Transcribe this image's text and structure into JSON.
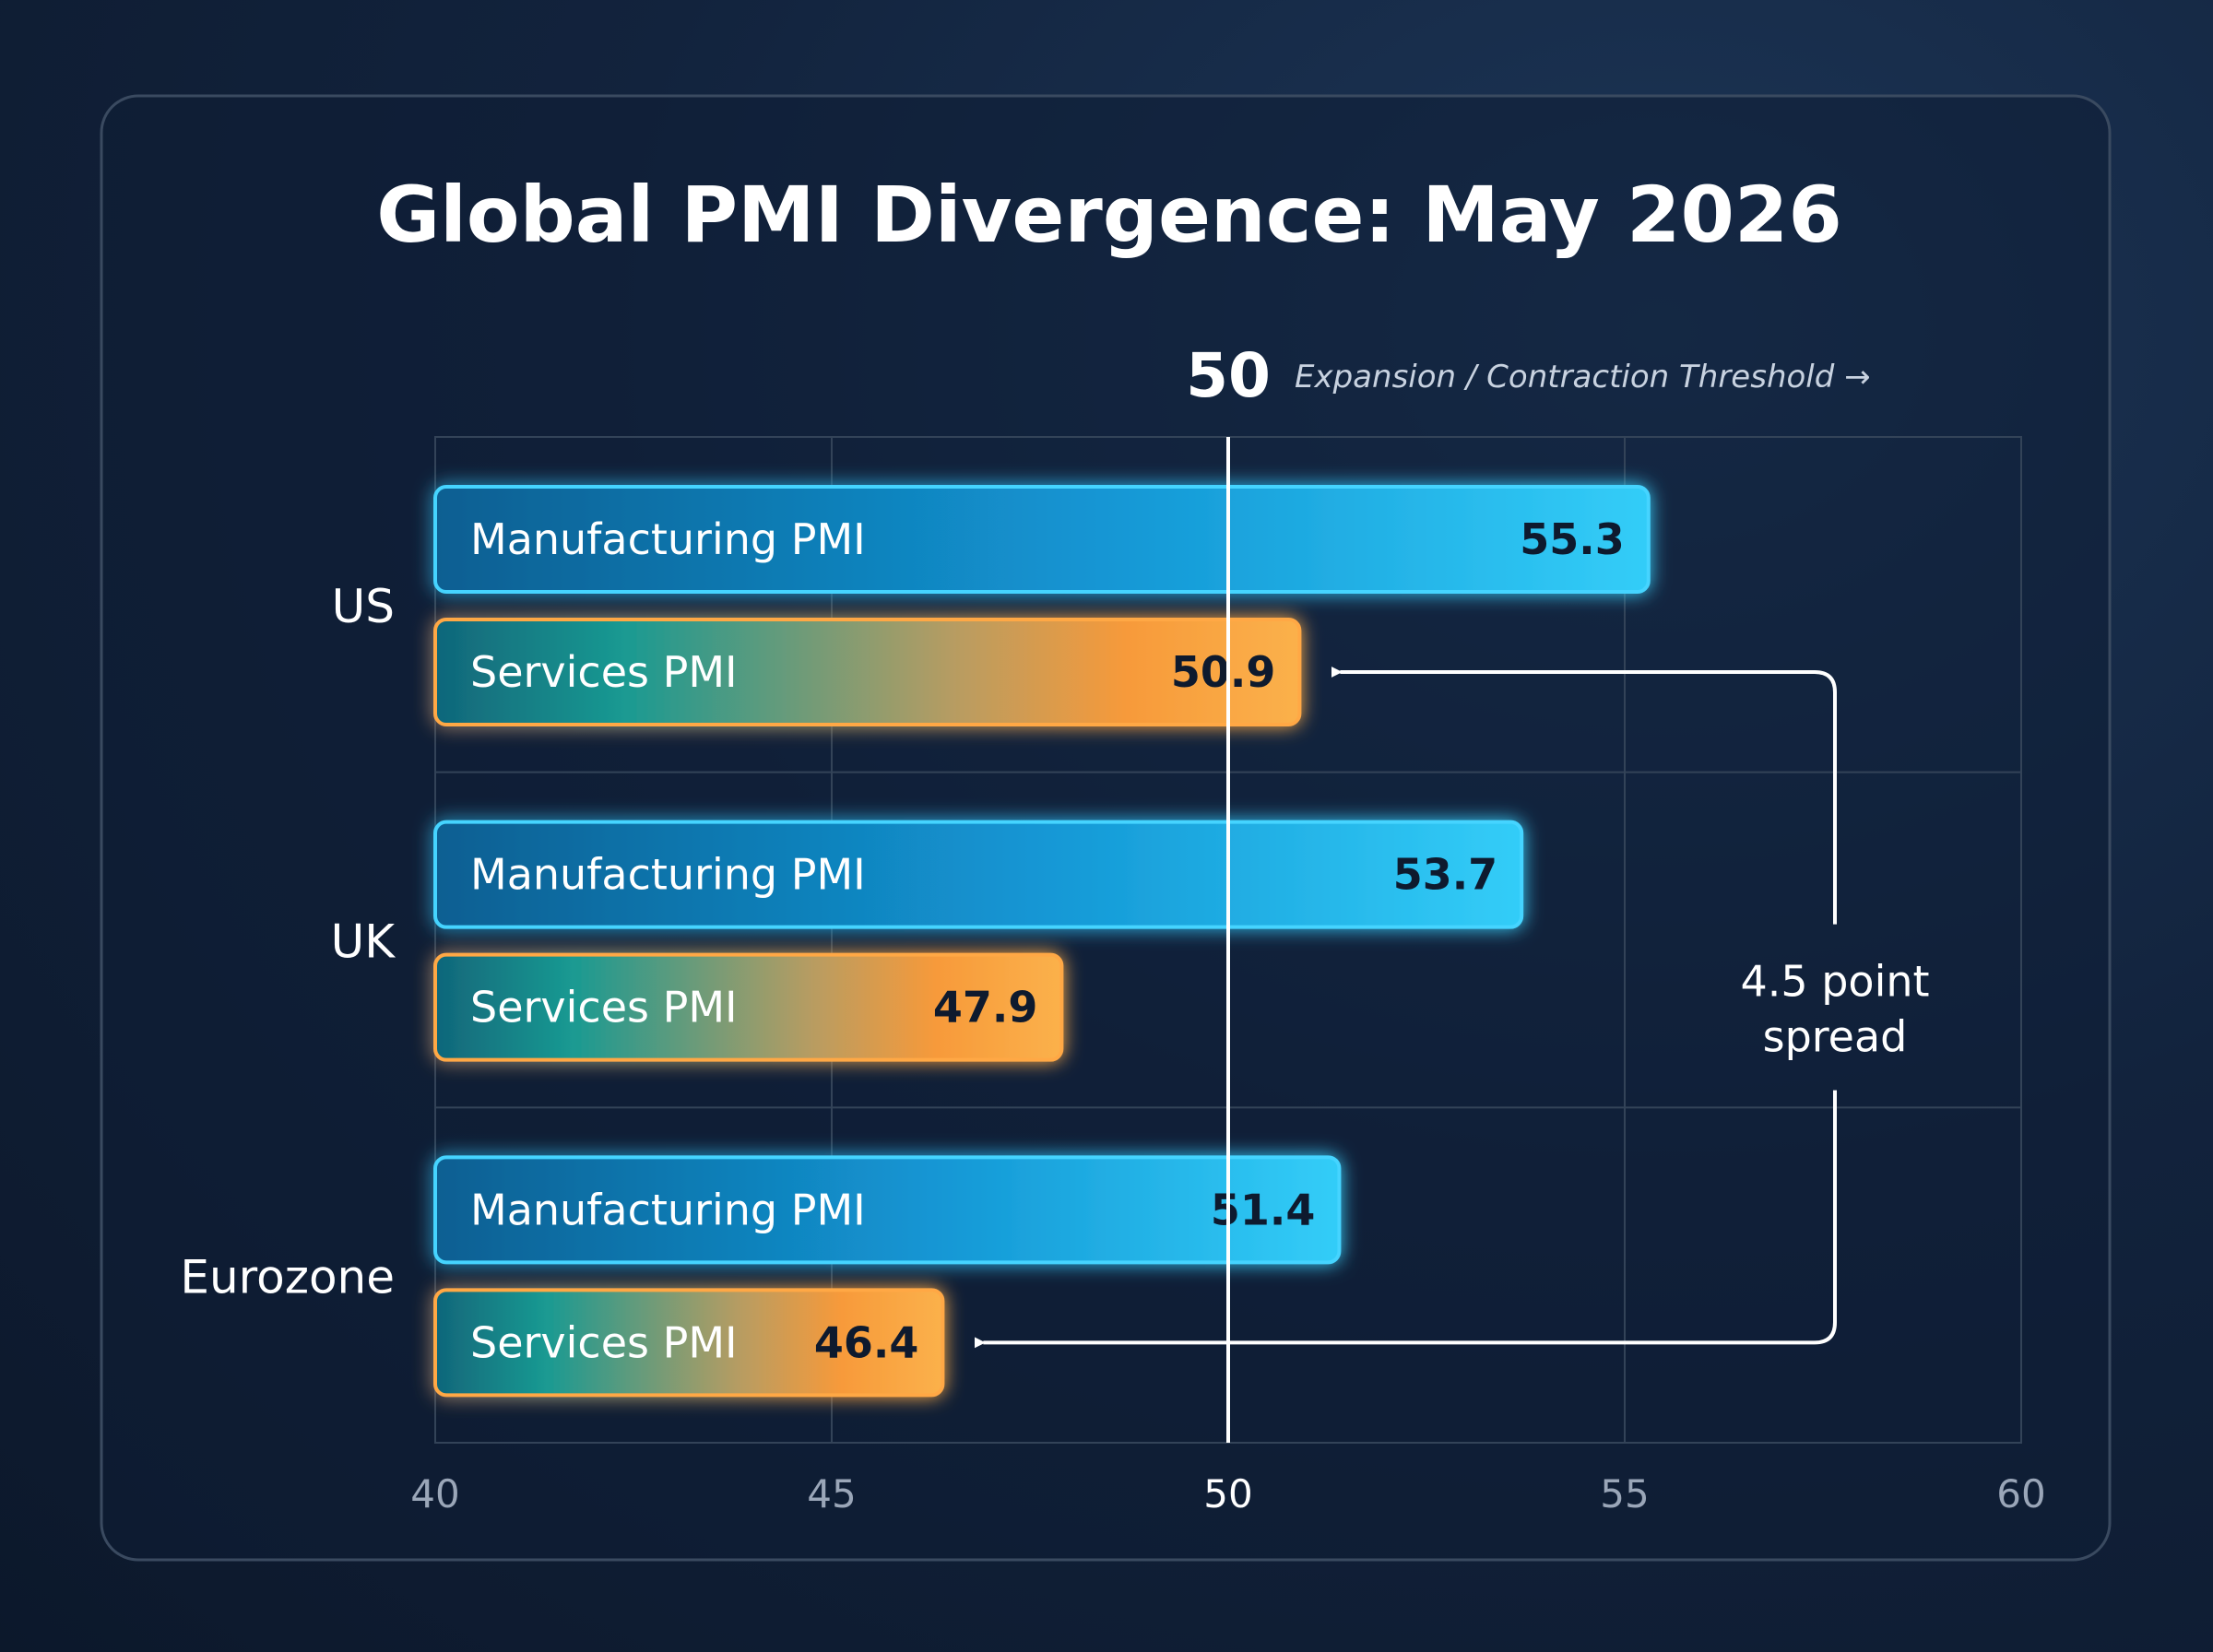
{
  "chart_data": {
    "type": "bar",
    "orientation": "horizontal",
    "title": "Global PMI Divergence: May 2026",
    "categories": [
      "US",
      "UK",
      "Eurozone"
    ],
    "series": [
      {
        "name": "Manufacturing PMI",
        "values": [
          55.3,
          53.7,
          51.4
        ],
        "color": "#2ec4f7"
      },
      {
        "name": "Services PMI",
        "values": [
          50.9,
          47.9,
          46.4
        ],
        "color": "#f79a3a"
      }
    ],
    "xlim": [
      40,
      60
    ],
    "xticks": [
      "40",
      "45",
      "50",
      "55",
      "60"
    ],
    "grid": true,
    "threshold": {
      "value": 50,
      "value_label": "50",
      "label": "Expansion / Contraction Threshold →"
    },
    "annotation": {
      "text_line1": "4.5 point",
      "text_line2": "spread",
      "from": "US Services PMI",
      "to": "Eurozone Services PMI"
    }
  }
}
